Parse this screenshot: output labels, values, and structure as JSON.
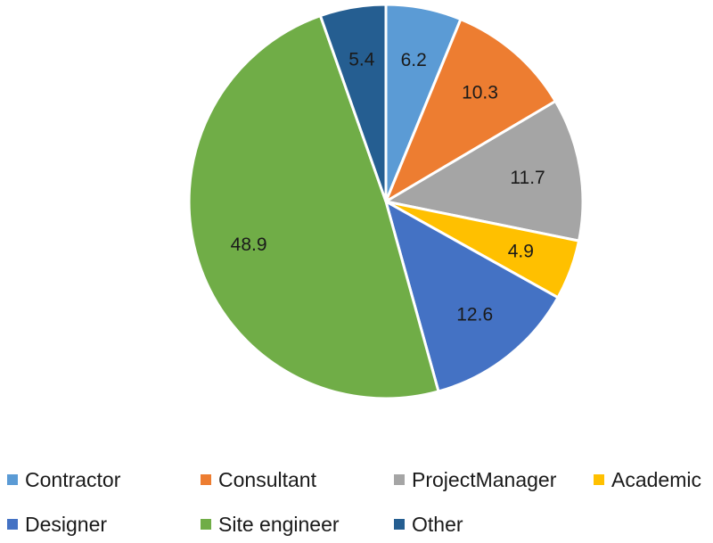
{
  "chart_data": {
    "type": "pie",
    "title": "",
    "legend_position": "bottom",
    "start_angle_deg": 0,
    "direction": "clockwise",
    "slices": [
      {
        "name": "Contractor",
        "value": 6.2,
        "label": "6.2",
        "color": "#5b9bd5"
      },
      {
        "name": "Consultant",
        "value": 10.3,
        "label": "10.3",
        "color": "#ed7d31"
      },
      {
        "name": "ProjectManager",
        "value": 11.7,
        "label": "11.7",
        "color": "#a5a5a5"
      },
      {
        "name": "Academic",
        "value": 4.9,
        "label": "4.9",
        "color": "#ffc000"
      },
      {
        "name": "Designer",
        "value": 12.6,
        "label": "12.6",
        "color": "#4472c4"
      },
      {
        "name": "Site engineer",
        "value": 48.9,
        "label": "48.9",
        "color": "#70ad47"
      },
      {
        "name": "Other",
        "value": 5.4,
        "label": "5.4",
        "color": "#255e91"
      }
    ]
  }
}
